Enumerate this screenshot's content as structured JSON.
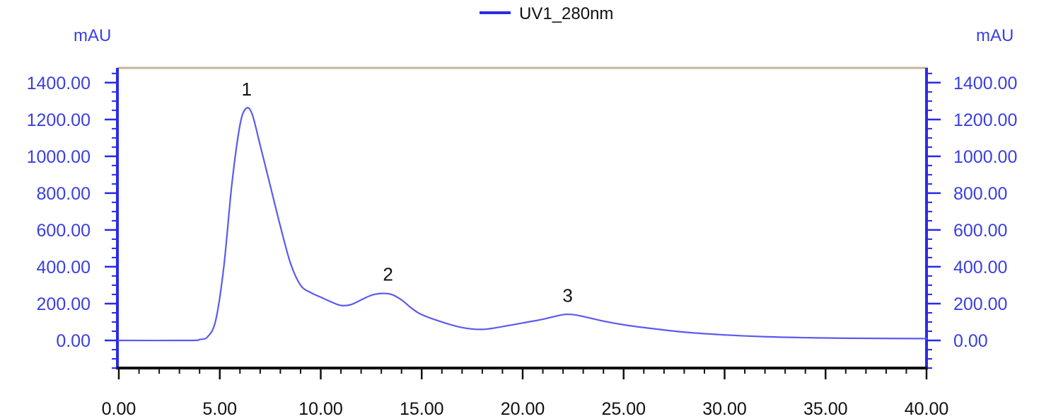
{
  "chart_data": {
    "type": "line",
    "legend": {
      "label": "UV1_280nm",
      "position": "top-center"
    },
    "y_unit_left": "mAU",
    "y_unit_right": "mAU",
    "xlim": [
      0,
      40
    ],
    "ylim": [
      -150,
      1480
    ],
    "x_tick_values": [
      0,
      5,
      10,
      15,
      20,
      25,
      30,
      35,
      40
    ],
    "x_tick_labels": [
      "0.00",
      "5.00",
      "10.00",
      "15.00",
      "20.00",
      "25.00",
      "30.00",
      "35.00",
      "40.00"
    ],
    "y_tick_values": [
      0,
      200,
      400,
      600,
      800,
      1000,
      1200,
      1400
    ],
    "y_tick_labels": [
      "0.00",
      "200.00",
      "400.00",
      "600.00",
      "800.00",
      "1000.00",
      "1200.00",
      "1400.00"
    ],
    "grid": false,
    "colors": {
      "series": "#5a5af0",
      "axis_left": "#2a2ae8",
      "axis_right": "#2a2ae8",
      "axis_bottom": "#111111",
      "frame_top": "#c8b49a",
      "tick_text_y": "#3a3fe0",
      "tick_text_x": "#111111"
    },
    "series": [
      {
        "name": "UV1_280nm",
        "x": [
          0,
          3.5,
          4.0,
          4.4,
          4.8,
          5.2,
          5.6,
          6.0,
          6.3,
          6.6,
          7.0,
          7.5,
          8.0,
          8.5,
          9.0,
          9.5,
          10.0,
          10.5,
          11.0,
          11.5,
          12.0,
          12.5,
          13.0,
          13.5,
          14.0,
          14.5,
          15.0,
          16.0,
          17.0,
          18.0,
          19.0,
          20.0,
          21.0,
          22.0,
          22.5,
          23.0,
          24.0,
          25.0,
          26.0,
          28.0,
          30.0,
          32.0,
          34.0,
          36.0,
          40.0
        ],
        "y": [
          0,
          0,
          5,
          20,
          110,
          400,
          850,
          1170,
          1260,
          1230,
          1060,
          840,
          620,
          420,
          300,
          260,
          235,
          210,
          190,
          195,
          220,
          245,
          255,
          250,
          220,
          175,
          140,
          100,
          70,
          60,
          75,
          95,
          115,
          140,
          140,
          130,
          105,
          85,
          70,
          45,
          30,
          20,
          15,
          12,
          10
        ]
      }
    ],
    "annotations": [
      {
        "text": "1",
        "x": 6.4,
        "y": 1260
      },
      {
        "text": "2",
        "x": 13.4,
        "y": 255
      },
      {
        "text": "3",
        "x": 22.3,
        "y": 140
      }
    ]
  }
}
